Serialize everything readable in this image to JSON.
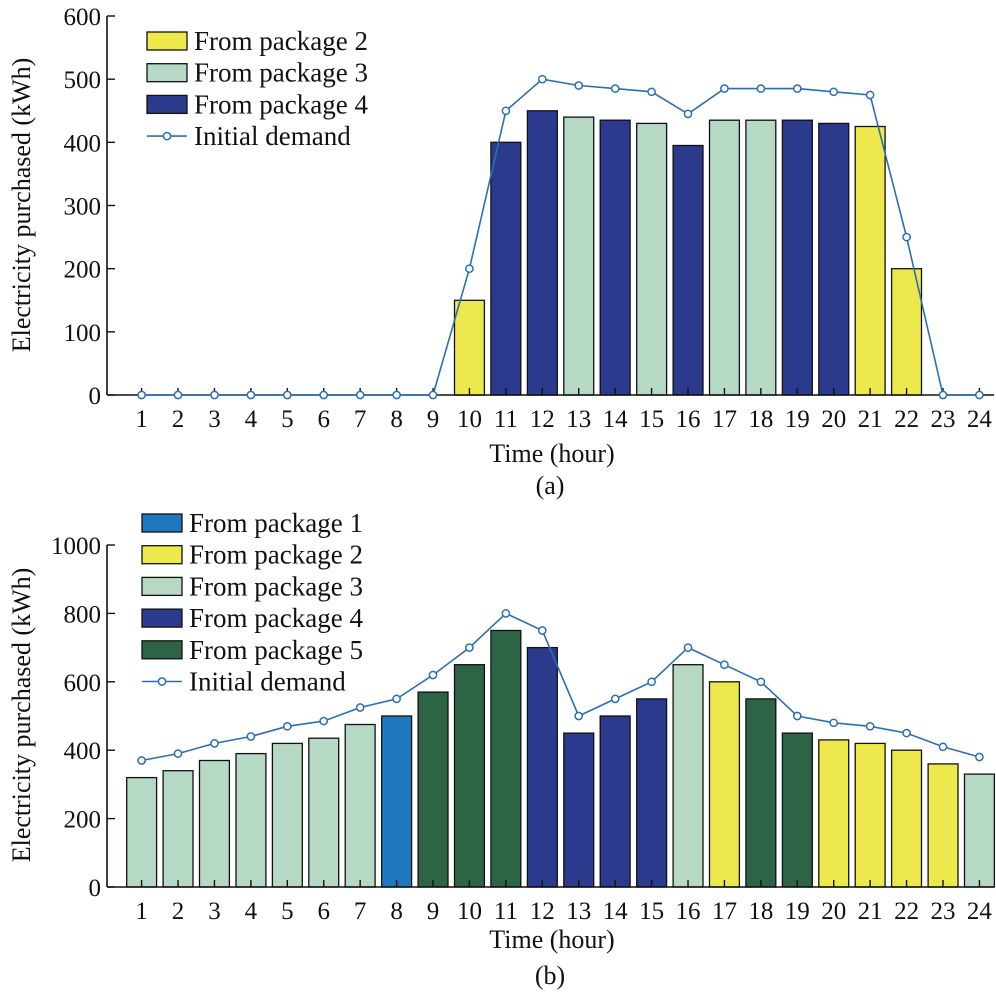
{
  "colors": {
    "package_1": "#1f78bf",
    "package_2": "#ede84b",
    "package_3": "#b6d9c6",
    "package_4": "#2b3a8c",
    "package_5": "#2e6446",
    "demand_line": "#2b6fb3"
  },
  "chart_data": [
    {
      "type": "bar",
      "sublabel": "(a)",
      "xlabel": "Time (hour)",
      "ylabel": "Electricity purchased (kWh)",
      "ylim": [
        0,
        600
      ],
      "yticks": [
        0,
        100,
        200,
        300,
        400,
        500,
        600
      ],
      "categories": [
        "1",
        "2",
        "3",
        "4",
        "5",
        "6",
        "7",
        "8",
        "9",
        "10",
        "11",
        "12",
        "13",
        "14",
        "15",
        "16",
        "17",
        "18",
        "19",
        "20",
        "21",
        "22",
        "23",
        "24"
      ],
      "values": [
        0,
        0,
        0,
        0,
        0,
        0,
        0,
        0,
        0,
        150,
        400,
        450,
        440,
        435,
        430,
        395,
        435,
        435,
        435,
        430,
        425,
        200,
        0,
        0
      ],
      "bar_package": [
        0,
        0,
        0,
        0,
        0,
        0,
        0,
        0,
        0,
        2,
        4,
        4,
        3,
        4,
        3,
        4,
        3,
        3,
        4,
        4,
        2,
        2,
        0,
        0
      ],
      "legend": [
        {
          "label": "From package 2",
          "kind": "bar",
          "package": 2
        },
        {
          "label": "From package 3",
          "kind": "bar",
          "package": 3
        },
        {
          "label": "From package 4",
          "kind": "bar",
          "package": 4
        },
        {
          "label": "Initial demand",
          "kind": "line"
        }
      ],
      "line": {
        "name": "Initial demand",
        "values": [
          0,
          0,
          0,
          0,
          0,
          0,
          0,
          0,
          0,
          200,
          450,
          500,
          490,
          485,
          480,
          445,
          485,
          485,
          485,
          480,
          475,
          250,
          0,
          0
        ]
      },
      "legend_position": "top-left",
      "grid": false
    },
    {
      "type": "bar",
      "sublabel": "(b)",
      "xlabel": "Time (hour)",
      "ylabel": "Electricity purchased (kWh)",
      "ylim": [
        0,
        1000
      ],
      "yticks": [
        0,
        200,
        400,
        600,
        800,
        1000
      ],
      "categories": [
        "1",
        "2",
        "3",
        "4",
        "5",
        "6",
        "7",
        "8",
        "9",
        "10",
        "11",
        "12",
        "13",
        "14",
        "15",
        "16",
        "17",
        "18",
        "19",
        "20",
        "21",
        "22",
        "23",
        "24"
      ],
      "values": [
        320,
        340,
        370,
        390,
        420,
        435,
        475,
        500,
        570,
        650,
        750,
        700,
        450,
        500,
        550,
        650,
        600,
        550,
        450,
        430,
        420,
        400,
        360,
        330
      ],
      "bar_package": [
        3,
        3,
        3,
        3,
        3,
        3,
        3,
        1,
        5,
        5,
        5,
        4,
        4,
        4,
        4,
        3,
        2,
        5,
        5,
        2,
        2,
        2,
        2,
        3
      ],
      "legend": [
        {
          "label": "From package 1",
          "kind": "bar",
          "package": 1
        },
        {
          "label": "From package 2",
          "kind": "bar",
          "package": 2
        },
        {
          "label": "From package 3",
          "kind": "bar",
          "package": 3
        },
        {
          "label": "From package 4",
          "kind": "bar",
          "package": 4
        },
        {
          "label": "From package 5",
          "kind": "bar",
          "package": 5
        },
        {
          "label": "Initial demand",
          "kind": "line"
        }
      ],
      "line": {
        "name": "Initial demand",
        "values": [
          370,
          390,
          420,
          440,
          470,
          485,
          525,
          550,
          620,
          700,
          800,
          750,
          500,
          550,
          600,
          700,
          650,
          600,
          500,
          480,
          470,
          450,
          410,
          380
        ]
      },
      "legend_position": "top-left",
      "grid": false
    }
  ]
}
